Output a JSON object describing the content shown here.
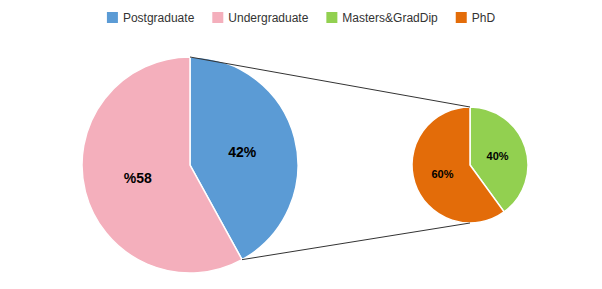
{
  "chart_data": [
    {
      "type": "pie",
      "categories": [
        "Postgraduate",
        "Undergraduate"
      ],
      "values": [
        42,
        58
      ],
      "value_labels": [
        "42%",
        "%58"
      ],
      "colors": [
        "#5B9BD5",
        "#F4AFBC"
      ],
      "data_labels": true,
      "legend": "top"
    },
    {
      "type": "pie",
      "categories": [
        "Masters&GradDip",
        "PhD"
      ],
      "values": [
        40,
        60
      ],
      "value_labels": [
        "40%",
        "60%"
      ],
      "colors": [
        "#92D050",
        "#E36C09"
      ],
      "data_labels": true,
      "legend": "top"
    }
  ]
}
